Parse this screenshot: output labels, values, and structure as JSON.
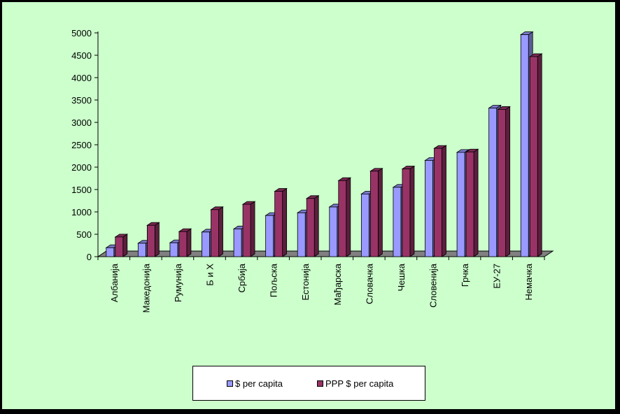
{
  "chart_data": {
    "type": "bar",
    "categories": [
      "Албанија",
      "Македонија",
      "Румунија",
      "Б и Х",
      "Србија",
      "Пољска",
      "Естонија",
      "Мађарска",
      "Словачка",
      "Чешка",
      "Словенија",
      "Грчка",
      "ЕУ-27",
      "Немачка"
    ],
    "series": [
      {
        "name": "$ per capita",
        "color": "#9999ff",
        "values": [
          200,
          300,
          310,
          550,
          620,
          920,
          980,
          1110,
          1400,
          1550,
          2150,
          2330,
          3320,
          4960
        ]
      },
      {
        "name": "PPP $ per capita",
        "color": "#993366",
        "values": [
          440,
          700,
          560,
          1050,
          1170,
          1460,
          1300,
          1700,
          1910,
          1960,
          2420,
          2340,
          3290,
          4470
        ]
      }
    ],
    "y_ticks": [
      "0",
      "500",
      "1000",
      "1500",
      "2000",
      "2500",
      "3000",
      "3500",
      "4000",
      "4500",
      "5000"
    ],
    "ylim": [
      0,
      5000
    ],
    "title": "",
    "xlabel": "",
    "ylabel": "",
    "grid": false,
    "legend_position": "bottom",
    "background": "#ccffcc"
  }
}
